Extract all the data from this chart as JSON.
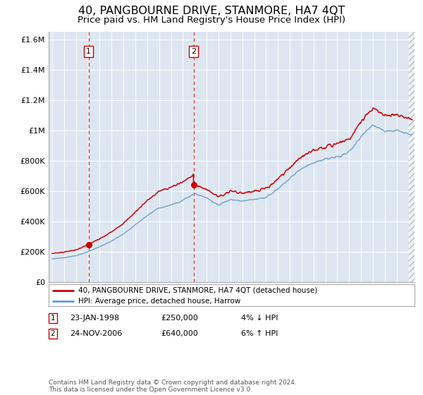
{
  "title": "40, PANGBOURNE DRIVE, STANMORE, HA7 4QT",
  "subtitle": "Price paid vs. HM Land Registry's House Price Index (HPI)",
  "title_fontsize": 11.5,
  "subtitle_fontsize": 9.5,
  "plot_bg_color": "#dde6f0",
  "sale1_date_x": 1998.06,
  "sale1_price": 250000,
  "sale2_date_x": 2006.9,
  "sale2_price": 640000,
  "xmin": 1994.7,
  "xmax": 2025.5,
  "ymin": 0,
  "ymax": 1650000,
  "yticks": [
    0,
    200000,
    400000,
    600000,
    800000,
    1000000,
    1200000,
    1400000,
    1600000
  ],
  "ytick_labels": [
    "£0",
    "£200K",
    "£400K",
    "£600K",
    "£800K",
    "£1M",
    "£1.2M",
    "£1.4M",
    "£1.6M"
  ],
  "legend_line1": "40, PANGBOURNE DRIVE, STANMORE, HA7 4QT (detached house)",
  "legend_line2": "HPI: Average price, detached house, Harrow",
  "footnote": "Contains HM Land Registry data © Crown copyright and database right 2024.\nThis data is licensed under the Open Government Licence v3.0.",
  "table": [
    {
      "num": "1",
      "date": "23-JAN-1998",
      "price": "£250,000",
      "hpi": "4% ↓ HPI"
    },
    {
      "num": "2",
      "date": "24-NOV-2006",
      "price": "£640,000",
      "hpi": "6% ↑ HPI"
    }
  ],
  "red_line_color": "#cc0000",
  "blue_line_color": "#6699cc",
  "dashed_color": "#cc0000",
  "hpi_years": [
    1995,
    1996,
    1997,
    1998,
    1999,
    2000,
    2001,
    2002,
    2003,
    2004,
    2005,
    2006,
    2007,
    2008,
    2009,
    2010,
    2011,
    2012,
    2013,
    2014,
    2015,
    2016,
    2017,
    2018,
    2019,
    2020,
    2021,
    2022,
    2023,
    2024,
    2025
  ],
  "hpi_vals": [
    155000,
    163000,
    175000,
    202000,
    235000,
    272000,
    318000,
    378000,
    440000,
    490000,
    510000,
    540000,
    585000,
    555000,
    510000,
    545000,
    535000,
    545000,
    560000,
    615000,
    685000,
    750000,
    790000,
    810000,
    825000,
    855000,
    960000,
    1040000,
    995000,
    1000000,
    975000
  ]
}
